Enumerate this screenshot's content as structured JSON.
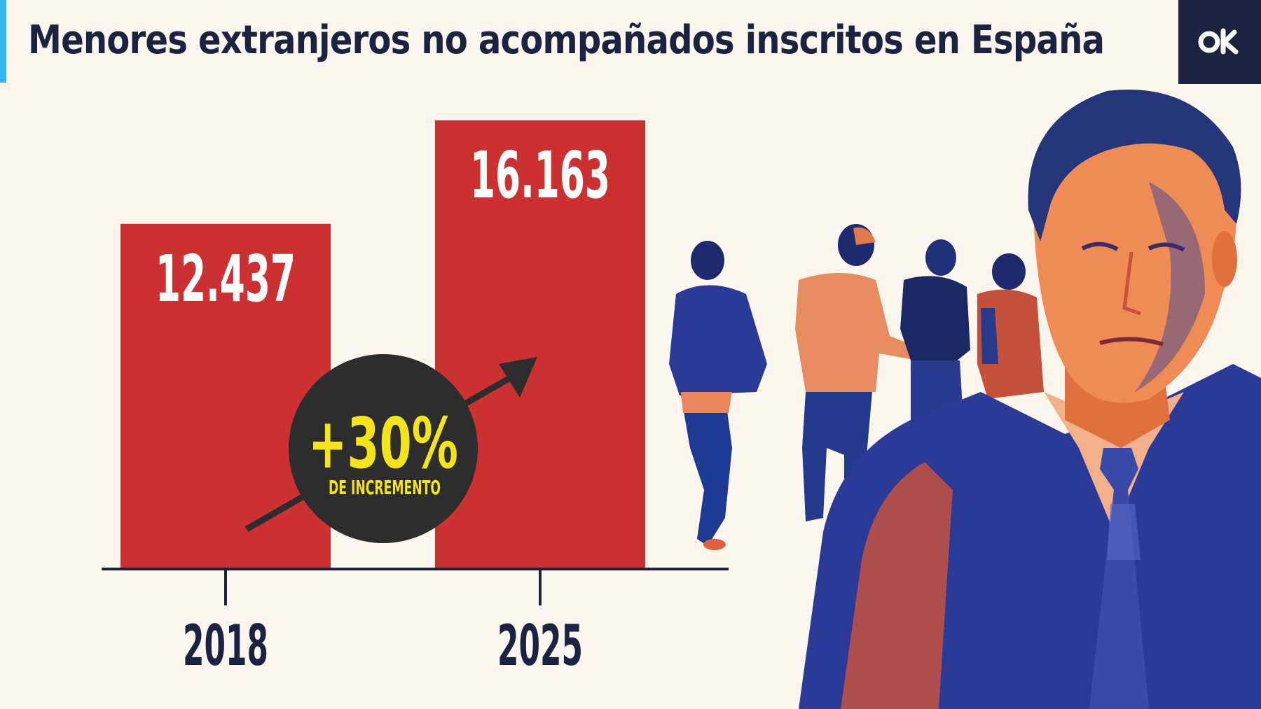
{
  "header": {
    "title": "Menores extranjeros no acompañados inscritos en España",
    "logo_text": "ok",
    "accent_color": "#35b6e8",
    "logo_bg": "#1b2340"
  },
  "chart_data": {
    "type": "bar",
    "title": "Menores extranjeros no acompañados inscritos en España",
    "categories": [
      "2018",
      "2025"
    ],
    "values": [
      12437,
      16163
    ],
    "value_labels": [
      "12.437",
      "16.163"
    ],
    "ylim": [
      0,
      16163
    ],
    "grid": false,
    "xlabel": "",
    "ylabel": "",
    "bar_color": "#cc3131",
    "annotation": {
      "main": "+30%",
      "sub": "DE INCREMENTO",
      "bg_color": "#2e2d2d",
      "text_color": "#f3e31b"
    }
  },
  "illustration": {
    "subjects": [
      "group-of-youths-walking",
      "man-in-suit-portrait"
    ],
    "palette": [
      "#1f3a93",
      "#e0603c",
      "#f2b08a"
    ]
  }
}
